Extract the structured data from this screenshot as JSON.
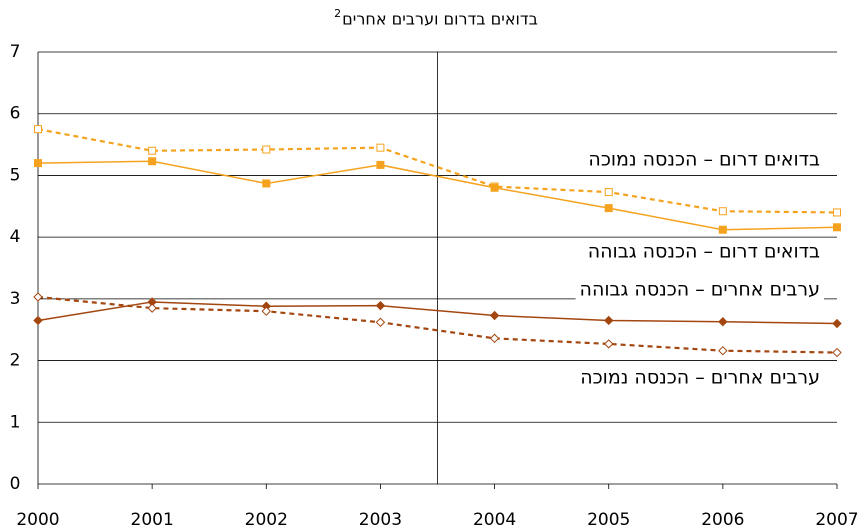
{
  "chart_data": {
    "type": "line",
    "title": "בדואים בדרום וערבים אחרים",
    "title_superscript": "2",
    "x": [
      2000,
      2001,
      2002,
      2003,
      2004,
      2005,
      2006,
      2007
    ],
    "xlim": [
      2000,
      2007
    ],
    "xticks": [
      2000,
      2001,
      2002,
      2003,
      2004,
      2005,
      2006,
      2007
    ],
    "ylim": [
      0,
      7
    ],
    "yticks": [
      0,
      1,
      2,
      3,
      4,
      5,
      6,
      7
    ],
    "grid": true,
    "vline": 2003.5,
    "series": [
      {
        "name": "בדואים דרום – הכנסה נמוכה",
        "color": "#f5a31e",
        "dashed": true,
        "marker": "square",
        "filled": false,
        "values": [
          5.75,
          5.4,
          5.42,
          5.45,
          4.82,
          4.73,
          4.42,
          4.4
        ]
      },
      {
        "name": "בדואים דרום – הכנסה גבוהה",
        "color": "#f5a31e",
        "dashed": false,
        "marker": "square",
        "filled": true,
        "values": [
          5.2,
          5.23,
          4.87,
          5.17,
          4.8,
          4.47,
          4.12,
          4.16
        ]
      },
      {
        "name": "ערבים אחרים – הכנסה גבוהה",
        "color": "#a3460f",
        "dashed": false,
        "marker": "diamond",
        "filled": true,
        "values": [
          2.65,
          2.95,
          2.88,
          2.89,
          2.73,
          2.65,
          2.63,
          2.6
        ]
      },
      {
        "name": "ערבים אחרים – הכנסה נמוכה",
        "color": "#a3460f",
        "dashed": true,
        "marker": "diamond",
        "filled": false,
        "values": [
          3.03,
          2.85,
          2.8,
          2.62,
          2.36,
          2.27,
          2.16,
          2.13
        ]
      }
    ]
  }
}
